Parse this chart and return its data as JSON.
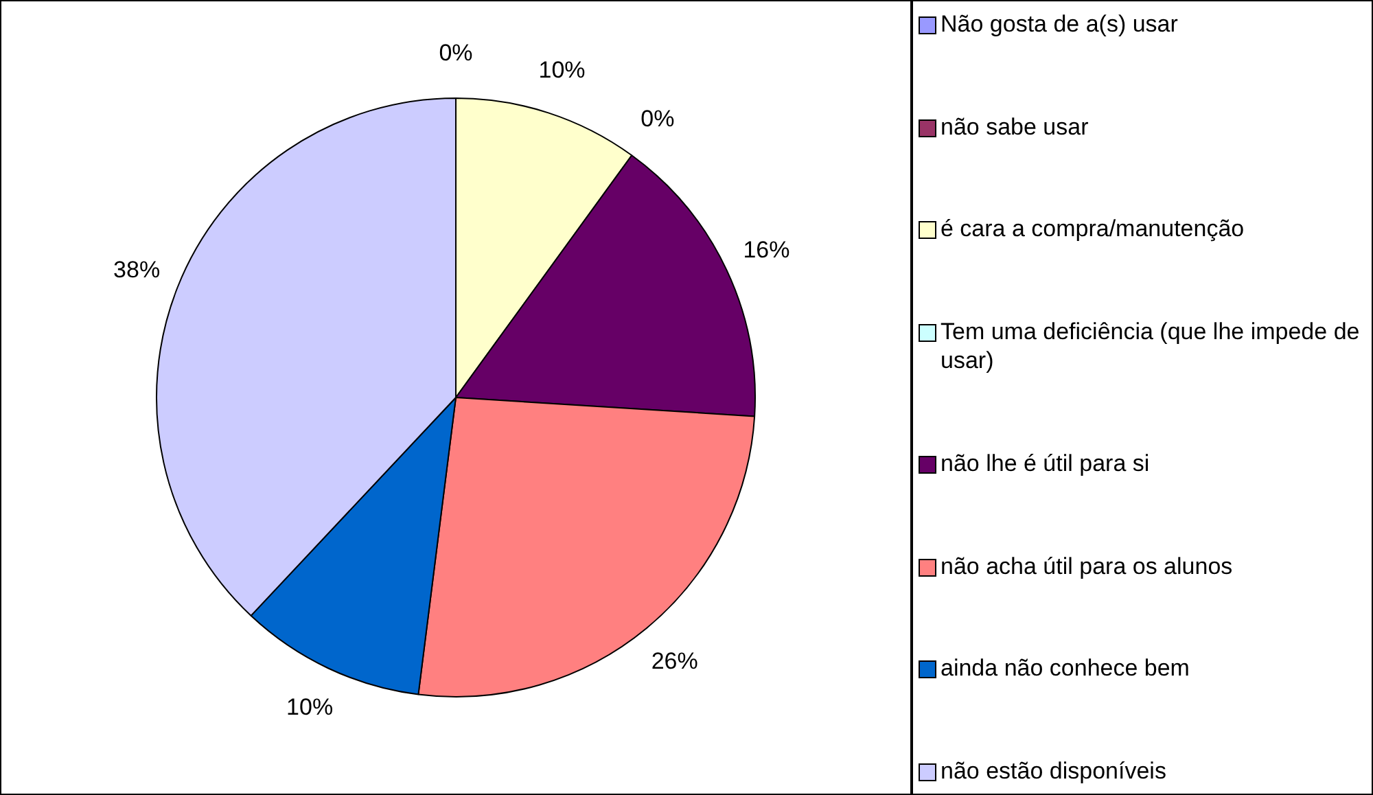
{
  "chart_data": {
    "type": "pie",
    "categories": [
      "Não gosta de a(s) usar",
      "não sabe usar",
      "é cara a compra/manutenção",
      "Tem uma deficiência (que lhe impede de usar)",
      "não lhe é útil para si",
      "não acha útil para os alunos",
      "ainda não conhece bem",
      "não estão disponíveis"
    ],
    "values": [
      0,
      0,
      10,
      0,
      16,
      26,
      10,
      38
    ],
    "colors": [
      "#9999ff",
      "#993366",
      "#ffffcc",
      "#ccffff",
      "#660066",
      "#ff8080",
      "#0066cc",
      "#ccccff"
    ],
    "value_labels": [
      "0%",
      null,
      "10%",
      "0%",
      "16%",
      "26%",
      "10%",
      "38%"
    ],
    "legend": "right"
  }
}
